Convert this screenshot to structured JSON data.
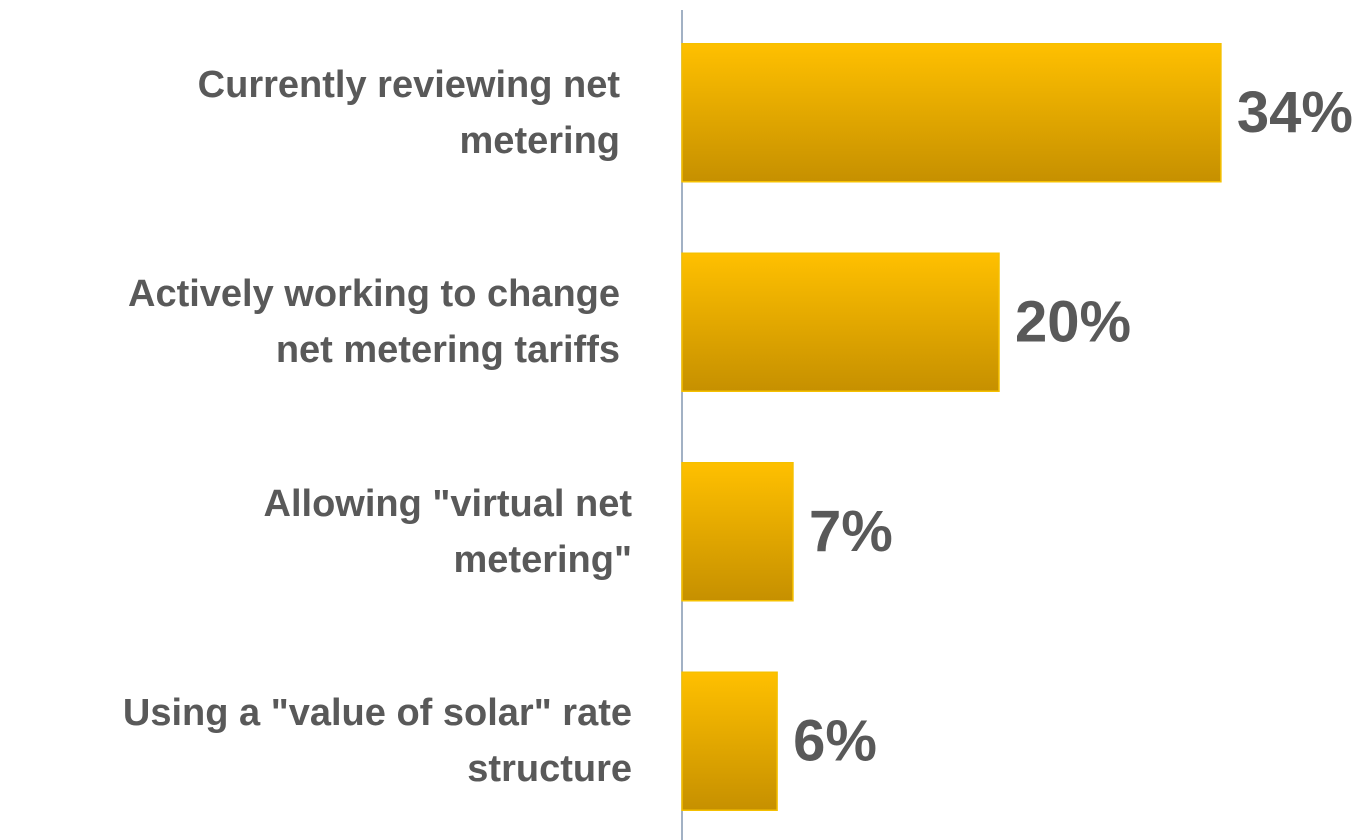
{
  "chart_data": {
    "type": "bar",
    "orientation": "horizontal",
    "categories": [
      "Currently reviewing net\nmetering",
      "Actively working to change\nnet metering tariffs",
      "Allowing \"virtual net\nmetering\"",
      "Using a \"value of solar\" rate\nstructure"
    ],
    "values": [
      34,
      20,
      7,
      6
    ],
    "value_labels": [
      "34%",
      "20%",
      "7%",
      "6%"
    ],
    "color": "#ffc000"
  }
}
